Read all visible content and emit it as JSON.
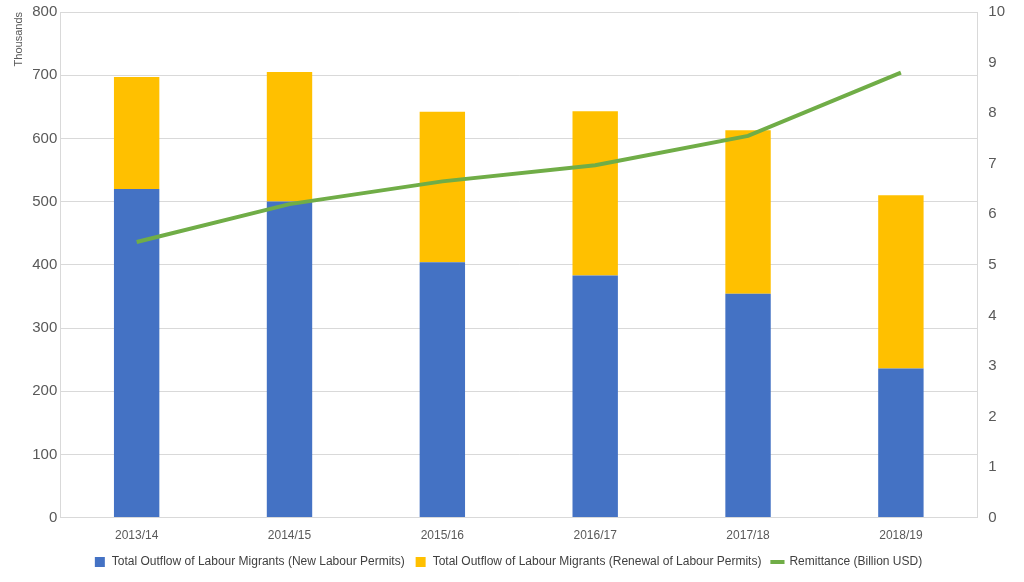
{
  "chart_data": {
    "type": "bar",
    "stacked": true,
    "grid": true,
    "legend": "bottom",
    "y_label": "Thousands",
    "categories": [
      "2013/14",
      "2014/15",
      "2015/16",
      "2016/17",
      "2017/18",
      "2018/19"
    ],
    "ylim": [
      0,
      800
    ],
    "yticks": [
      0,
      100,
      200,
      300,
      400,
      500,
      600,
      700,
      800
    ],
    "y2lim": [
      0,
      10
    ],
    "y2ticks": [
      0,
      1,
      2,
      3,
      4,
      5,
      6,
      7,
      8,
      9,
      10
    ],
    "series": [
      {
        "name": "Total Outflow of Labour Migrants (New Labour Permits)",
        "type": "bar",
        "color": "#4472c4",
        "values": [
          520,
          500,
          404,
          383,
          354,
          236
        ]
      },
      {
        "name": "Total Outflow of Labour Migrants (Renewal of Labour Permits)",
        "type": "bar",
        "color": "#ffc000",
        "values": [
          177,
          205,
          238,
          260,
          259,
          274
        ]
      },
      {
        "name": "Remittance (Billion USD)",
        "type": "line",
        "color": "#70ad47",
        "axis": "y2",
        "marker": "none",
        "values": [
          5.45,
          6.2,
          6.65,
          6.97,
          7.55,
          8.8
        ]
      }
    ]
  }
}
